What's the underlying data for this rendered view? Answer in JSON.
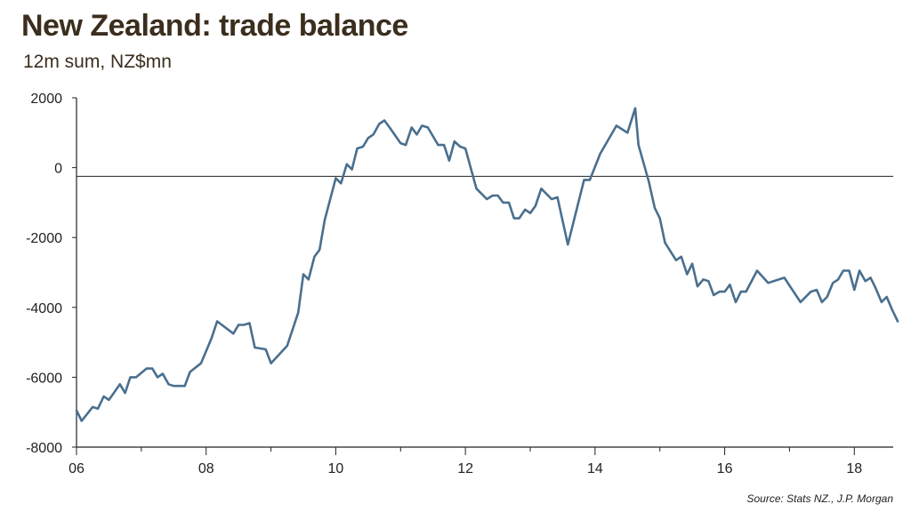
{
  "chart_data": {
    "type": "line",
    "title": "New Zealand: trade balance",
    "subtitle": "12m sum, NZ$mn",
    "source": "Source: Stats NZ., J.P. Morgan",
    "xlabel": "",
    "ylabel": "",
    "xlim": [
      2006.0,
      2018.6
    ],
    "ylim": [
      -8000,
      2000
    ],
    "x_ticks": [
      2006,
      2008,
      2010,
      2012,
      2014,
      2016,
      2018
    ],
    "x_tick_labels": [
      "06",
      "08",
      "10",
      "12",
      "14",
      "16",
      "18"
    ],
    "y_ticks": [
      2000,
      0,
      -2000,
      -4000,
      -6000,
      -8000
    ],
    "y_tick_labels": [
      "2000",
      "0",
      "-2000",
      "-4000",
      "-6000",
      "-8000"
    ],
    "grid": false,
    "legend": "none",
    "reference_line": -250,
    "colors": {
      "series": "#4a6f8e",
      "reference_line": "#222222",
      "title": "#3b2e1e"
    },
    "series": [
      {
        "points": [
          [
            2006.0,
            -6950
          ],
          [
            2006.08,
            -7250
          ],
          [
            2006.25,
            -6850
          ],
          [
            2006.33,
            -6900
          ],
          [
            2006.42,
            -6550
          ],
          [
            2006.5,
            -6650
          ],
          [
            2006.67,
            -6200
          ],
          [
            2006.75,
            -6450
          ],
          [
            2006.83,
            -6000
          ],
          [
            2006.92,
            -6000
          ],
          [
            2007.08,
            -5750
          ],
          [
            2007.17,
            -5750
          ],
          [
            2007.25,
            -6000
          ],
          [
            2007.33,
            -5900
          ],
          [
            2007.42,
            -6200
          ],
          [
            2007.5,
            -6250
          ],
          [
            2007.67,
            -6250
          ],
          [
            2007.75,
            -5850
          ],
          [
            2007.92,
            -5600
          ],
          [
            2008.08,
            -4900
          ],
          [
            2008.17,
            -4400
          ],
          [
            2008.42,
            -4750
          ],
          [
            2008.5,
            -4500
          ],
          [
            2008.58,
            -4500
          ],
          [
            2008.67,
            -4450
          ],
          [
            2008.75,
            -5150
          ],
          [
            2008.92,
            -5200
          ],
          [
            2009.0,
            -5600
          ],
          [
            2009.25,
            -5100
          ],
          [
            2009.42,
            -4150
          ],
          [
            2009.5,
            -3050
          ],
          [
            2009.58,
            -3200
          ],
          [
            2009.67,
            -2550
          ],
          [
            2009.75,
            -2350
          ],
          [
            2009.83,
            -1500
          ],
          [
            2010.0,
            -300
          ],
          [
            2010.08,
            -450
          ],
          [
            2010.17,
            100
          ],
          [
            2010.25,
            -50
          ],
          [
            2010.33,
            550
          ],
          [
            2010.42,
            600
          ],
          [
            2010.5,
            850
          ],
          [
            2010.58,
            950
          ],
          [
            2010.67,
            1250
          ],
          [
            2010.75,
            1350
          ],
          [
            2010.83,
            1150
          ],
          [
            2011.0,
            700
          ],
          [
            2011.08,
            650
          ],
          [
            2011.17,
            1150
          ],
          [
            2011.25,
            950
          ],
          [
            2011.33,
            1200
          ],
          [
            2011.42,
            1150
          ],
          [
            2011.58,
            650
          ],
          [
            2011.67,
            650
          ],
          [
            2011.75,
            200
          ],
          [
            2011.83,
            750
          ],
          [
            2011.92,
            600
          ],
          [
            2012.0,
            550
          ],
          [
            2012.17,
            -600
          ],
          [
            2012.33,
            -900
          ],
          [
            2012.42,
            -800
          ],
          [
            2012.5,
            -800
          ],
          [
            2012.58,
            -1000
          ],
          [
            2012.67,
            -1000
          ],
          [
            2012.75,
            -1450
          ],
          [
            2012.83,
            -1450
          ],
          [
            2012.92,
            -1200
          ],
          [
            2013.0,
            -1300
          ],
          [
            2013.08,
            -1100
          ],
          [
            2013.17,
            -600
          ],
          [
            2013.33,
            -900
          ],
          [
            2013.42,
            -850
          ],
          [
            2013.58,
            -2200
          ],
          [
            2013.83,
            -350
          ],
          [
            2013.92,
            -350
          ],
          [
            2014.08,
            400
          ],
          [
            2014.33,
            1200
          ],
          [
            2014.5,
            1000
          ],
          [
            2014.62,
            1700
          ],
          [
            2014.67,
            650
          ],
          [
            2014.83,
            -400
          ],
          [
            2014.92,
            -1150
          ],
          [
            2015.0,
            -1450
          ],
          [
            2015.08,
            -2150
          ],
          [
            2015.25,
            -2650
          ],
          [
            2015.33,
            -2550
          ],
          [
            2015.42,
            -3050
          ],
          [
            2015.5,
            -2750
          ],
          [
            2015.58,
            -3400
          ],
          [
            2015.67,
            -3200
          ],
          [
            2015.75,
            -3250
          ],
          [
            2015.83,
            -3650
          ],
          [
            2015.92,
            -3550
          ],
          [
            2016.0,
            -3550
          ],
          [
            2016.08,
            -3350
          ],
          [
            2016.17,
            -3850
          ],
          [
            2016.25,
            -3550
          ],
          [
            2016.33,
            -3550
          ],
          [
            2016.5,
            -2950
          ],
          [
            2016.67,
            -3300
          ],
          [
            2016.92,
            -3150
          ],
          [
            2017.17,
            -3850
          ],
          [
            2017.33,
            -3550
          ],
          [
            2017.42,
            -3500
          ],
          [
            2017.5,
            -3850
          ],
          [
            2017.58,
            -3700
          ],
          [
            2017.67,
            -3300
          ],
          [
            2017.75,
            -3200
          ],
          [
            2017.83,
            -2950
          ],
          [
            2017.92,
            -2950
          ],
          [
            2018.0,
            -3500
          ],
          [
            2018.08,
            -2950
          ],
          [
            2018.17,
            -3250
          ],
          [
            2018.25,
            -3150
          ],
          [
            2018.33,
            -3450
          ],
          [
            2018.42,
            -3850
          ],
          [
            2018.5,
            -3700
          ],
          [
            2018.58,
            -4050
          ],
          [
            2018.67,
            -4400
          ]
        ]
      }
    ]
  }
}
